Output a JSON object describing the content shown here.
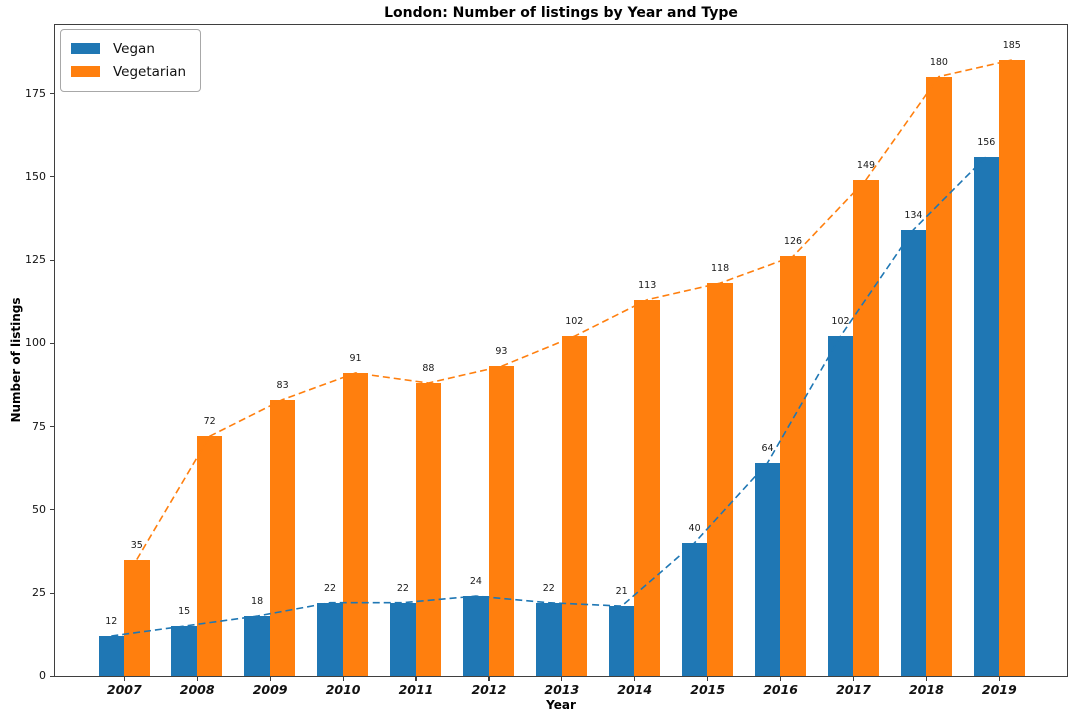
{
  "chart_data": {
    "type": "bar",
    "title": "London: Number of listings by Year and Type",
    "xlabel": "Year",
    "ylabel": "Number of listings",
    "categories": [
      "2007",
      "2008",
      "2009",
      "2010",
      "2011",
      "2012",
      "2013",
      "2014",
      "2015",
      "2016",
      "2017",
      "2018",
      "2019"
    ],
    "series": [
      {
        "name": "Vegan",
        "color": "#1f77b4",
        "values": [
          12,
          15,
          18,
          22,
          22,
          24,
          22,
          21,
          40,
          64,
          102,
          134,
          156
        ]
      },
      {
        "name": "Vegetarian",
        "color": "#ff7f0e",
        "values": [
          35,
          72,
          83,
          91,
          88,
          93,
          102,
          113,
          118,
          126,
          149,
          180,
          185
        ]
      }
    ],
    "yticks": [
      0,
      25,
      50,
      75,
      100,
      125,
      150,
      175
    ],
    "ylim": [
      0,
      195.5
    ],
    "grid": false,
    "legend_position": "upper left",
    "bar_value_labels": true,
    "overlay_trend_lines": "dashed line per series passing through bar tops"
  }
}
